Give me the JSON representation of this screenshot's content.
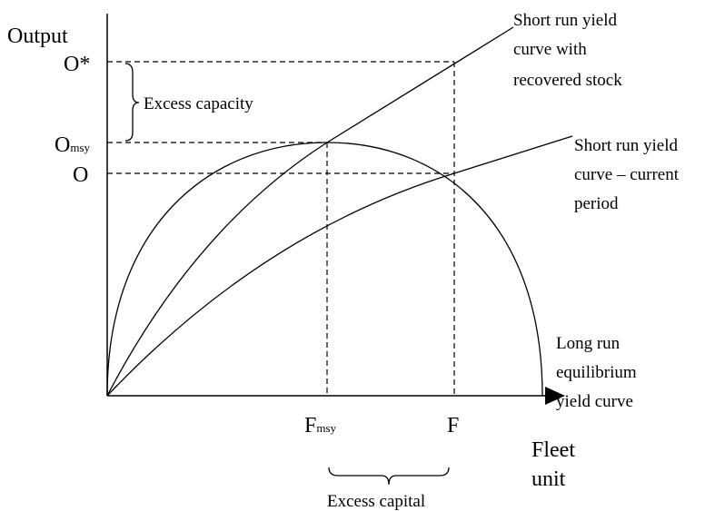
{
  "axes": {
    "y_label": "Output",
    "x_label": [
      "Fleet",
      "unit"
    ]
  },
  "y_levels": [
    {
      "main": "O*"
    },
    {
      "main": "O",
      "sub": "msy"
    },
    {
      "main": "O"
    }
  ],
  "x_levels": [
    {
      "main": "F",
      "sub": "msy"
    },
    {
      "main": "F"
    }
  ],
  "annotations": {
    "excess_capacity": "Excess capacity",
    "excess_capital": "Excess capital"
  },
  "curves": [
    {
      "label": [
        "Short run yield",
        "curve with",
        "recovered stock"
      ]
    },
    {
      "label": [
        "Short run yield",
        "curve – current",
        "period"
      ]
    },
    {
      "label": [
        "Long run",
        "equilibrium",
        "yield curve"
      ]
    }
  ]
}
